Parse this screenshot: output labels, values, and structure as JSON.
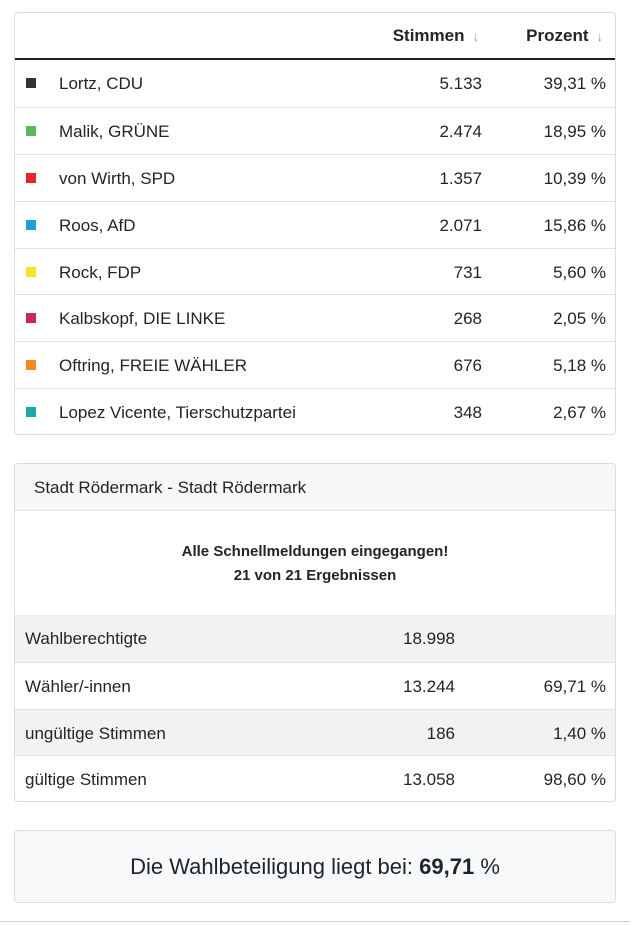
{
  "results": {
    "headers": {
      "votes": "Stimmen",
      "percent": "Prozent"
    },
    "rows": [
      {
        "candidate": "Lortz, CDU",
        "votes": "5.133",
        "percent": "39,31 %",
        "color": "#333333"
      },
      {
        "candidate": "Malik, GRÜNE",
        "votes": "2.474",
        "percent": "18,95 %",
        "color": "#5cb85c"
      },
      {
        "candidate": "von Wirth, SPD",
        "votes": "1.357",
        "percent": "10,39 %",
        "color": "#e3262a"
      },
      {
        "candidate": "Roos, AfD",
        "votes": "2.071",
        "percent": "15,86 %",
        "color": "#1aa0db"
      },
      {
        "candidate": "Rock, FDP",
        "votes": "731",
        "percent": "5,60 %",
        "color": "#f5e625"
      },
      {
        "candidate": "Kalbskopf, DIE LINKE",
        "votes": "268",
        "percent": "2,05 %",
        "color": "#c8285a"
      },
      {
        "candidate": "Oftring, FREIE WÄHLER",
        "votes": "676",
        "percent": "5,18 %",
        "color": "#f08c1e"
      },
      {
        "candidate": "Lopez Vicente, Tierschutzpartei",
        "votes": "348",
        "percent": "2,67 %",
        "color": "#1aa9a4"
      }
    ]
  },
  "summary": {
    "title": "Stadt Rödermark - Stadt Rödermark",
    "notice_line1": "Alle Schnellmeldungen eingegangen!",
    "notice_line2": "21 von 21 Ergebnissen",
    "stats": [
      {
        "label": "Wahlberechtigte",
        "value": "18.998",
        "percent": ""
      },
      {
        "label": "Wähler/-innen",
        "value": "13.244",
        "percent": "69,71 %"
      },
      {
        "label": "ungültige Stimmen",
        "value": "186",
        "percent": "1,40 %"
      },
      {
        "label": "gültige Stimmen",
        "value": "13.058",
        "percent": "98,60 %"
      }
    ]
  },
  "turnout": {
    "prefix": "Die Wahlbeteiligung liegt bei:",
    "value": "69,71",
    "unit": "%"
  }
}
